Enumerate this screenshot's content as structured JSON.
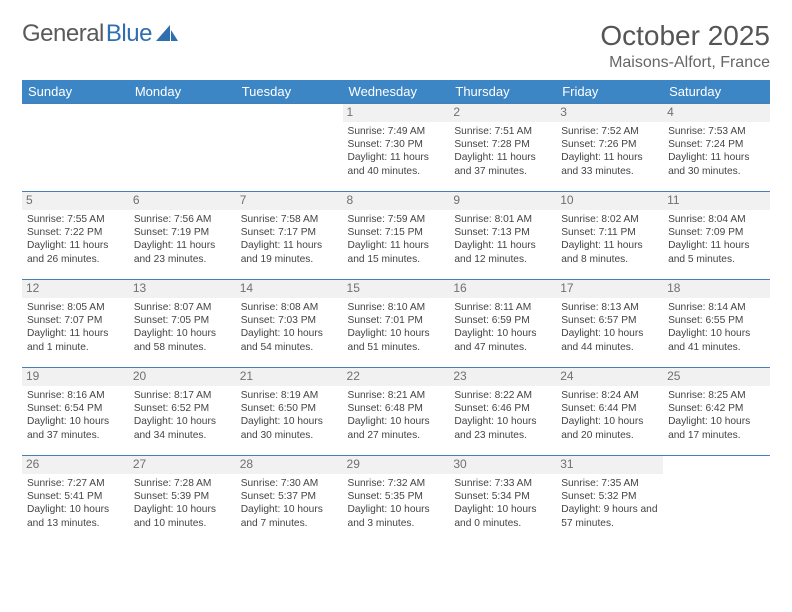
{
  "brand": {
    "part1": "General",
    "part2": "Blue"
  },
  "title": "October 2025",
  "location": "Maisons-Alfort, France",
  "header_bg": "#3d86c6",
  "row_border": "#4a7fb5",
  "daynum_bg": "#f1f1f1",
  "week_headers": [
    "Sunday",
    "Monday",
    "Tuesday",
    "Wednesday",
    "Thursday",
    "Friday",
    "Saturday"
  ],
  "weeks": [
    [
      {
        "n": "",
        "lines": []
      },
      {
        "n": "",
        "lines": []
      },
      {
        "n": "",
        "lines": []
      },
      {
        "n": "1",
        "lines": [
          "Sunrise: 7:49 AM",
          "Sunset: 7:30 PM",
          "Daylight: 11 hours and 40 minutes."
        ]
      },
      {
        "n": "2",
        "lines": [
          "Sunrise: 7:51 AM",
          "Sunset: 7:28 PM",
          "Daylight: 11 hours and 37 minutes."
        ]
      },
      {
        "n": "3",
        "lines": [
          "Sunrise: 7:52 AM",
          "Sunset: 7:26 PM",
          "Daylight: 11 hours and 33 minutes."
        ]
      },
      {
        "n": "4",
        "lines": [
          "Sunrise: 7:53 AM",
          "Sunset: 7:24 PM",
          "Daylight: 11 hours and 30 minutes."
        ]
      }
    ],
    [
      {
        "n": "5",
        "lines": [
          "Sunrise: 7:55 AM",
          "Sunset: 7:22 PM",
          "Daylight: 11 hours and 26 minutes."
        ]
      },
      {
        "n": "6",
        "lines": [
          "Sunrise: 7:56 AM",
          "Sunset: 7:19 PM",
          "Daylight: 11 hours and 23 minutes."
        ]
      },
      {
        "n": "7",
        "lines": [
          "Sunrise: 7:58 AM",
          "Sunset: 7:17 PM",
          "Daylight: 11 hours and 19 minutes."
        ]
      },
      {
        "n": "8",
        "lines": [
          "Sunrise: 7:59 AM",
          "Sunset: 7:15 PM",
          "Daylight: 11 hours and 15 minutes."
        ]
      },
      {
        "n": "9",
        "lines": [
          "Sunrise: 8:01 AM",
          "Sunset: 7:13 PM",
          "Daylight: 11 hours and 12 minutes."
        ]
      },
      {
        "n": "10",
        "lines": [
          "Sunrise: 8:02 AM",
          "Sunset: 7:11 PM",
          "Daylight: 11 hours and 8 minutes."
        ]
      },
      {
        "n": "11",
        "lines": [
          "Sunrise: 8:04 AM",
          "Sunset: 7:09 PM",
          "Daylight: 11 hours and 5 minutes."
        ]
      }
    ],
    [
      {
        "n": "12",
        "lines": [
          "Sunrise: 8:05 AM",
          "Sunset: 7:07 PM",
          "Daylight: 11 hours and 1 minute."
        ]
      },
      {
        "n": "13",
        "lines": [
          "Sunrise: 8:07 AM",
          "Sunset: 7:05 PM",
          "Daylight: 10 hours and 58 minutes."
        ]
      },
      {
        "n": "14",
        "lines": [
          "Sunrise: 8:08 AM",
          "Sunset: 7:03 PM",
          "Daylight: 10 hours and 54 minutes."
        ]
      },
      {
        "n": "15",
        "lines": [
          "Sunrise: 8:10 AM",
          "Sunset: 7:01 PM",
          "Daylight: 10 hours and 51 minutes."
        ]
      },
      {
        "n": "16",
        "lines": [
          "Sunrise: 8:11 AM",
          "Sunset: 6:59 PM",
          "Daylight: 10 hours and 47 minutes."
        ]
      },
      {
        "n": "17",
        "lines": [
          "Sunrise: 8:13 AM",
          "Sunset: 6:57 PM",
          "Daylight: 10 hours and 44 minutes."
        ]
      },
      {
        "n": "18",
        "lines": [
          "Sunrise: 8:14 AM",
          "Sunset: 6:55 PM",
          "Daylight: 10 hours and 41 minutes."
        ]
      }
    ],
    [
      {
        "n": "19",
        "lines": [
          "Sunrise: 8:16 AM",
          "Sunset: 6:54 PM",
          "Daylight: 10 hours and 37 minutes."
        ]
      },
      {
        "n": "20",
        "lines": [
          "Sunrise: 8:17 AM",
          "Sunset: 6:52 PM",
          "Daylight: 10 hours and 34 minutes."
        ]
      },
      {
        "n": "21",
        "lines": [
          "Sunrise: 8:19 AM",
          "Sunset: 6:50 PM",
          "Daylight: 10 hours and 30 minutes."
        ]
      },
      {
        "n": "22",
        "lines": [
          "Sunrise: 8:21 AM",
          "Sunset: 6:48 PM",
          "Daylight: 10 hours and 27 minutes."
        ]
      },
      {
        "n": "23",
        "lines": [
          "Sunrise: 8:22 AM",
          "Sunset: 6:46 PM",
          "Daylight: 10 hours and 23 minutes."
        ]
      },
      {
        "n": "24",
        "lines": [
          "Sunrise: 8:24 AM",
          "Sunset: 6:44 PM",
          "Daylight: 10 hours and 20 minutes."
        ]
      },
      {
        "n": "25",
        "lines": [
          "Sunrise: 8:25 AM",
          "Sunset: 6:42 PM",
          "Daylight: 10 hours and 17 minutes."
        ]
      }
    ],
    [
      {
        "n": "26",
        "lines": [
          "Sunrise: 7:27 AM",
          "Sunset: 5:41 PM",
          "Daylight: 10 hours and 13 minutes."
        ]
      },
      {
        "n": "27",
        "lines": [
          "Sunrise: 7:28 AM",
          "Sunset: 5:39 PM",
          "Daylight: 10 hours and 10 minutes."
        ]
      },
      {
        "n": "28",
        "lines": [
          "Sunrise: 7:30 AM",
          "Sunset: 5:37 PM",
          "Daylight: 10 hours and 7 minutes."
        ]
      },
      {
        "n": "29",
        "lines": [
          "Sunrise: 7:32 AM",
          "Sunset: 5:35 PM",
          "Daylight: 10 hours and 3 minutes."
        ]
      },
      {
        "n": "30",
        "lines": [
          "Sunrise: 7:33 AM",
          "Sunset: 5:34 PM",
          "Daylight: 10 hours and 0 minutes."
        ]
      },
      {
        "n": "31",
        "lines": [
          "Sunrise: 7:35 AM",
          "Sunset: 5:32 PM",
          "Daylight: 9 hours and 57 minutes."
        ]
      },
      {
        "n": "",
        "lines": []
      }
    ]
  ]
}
